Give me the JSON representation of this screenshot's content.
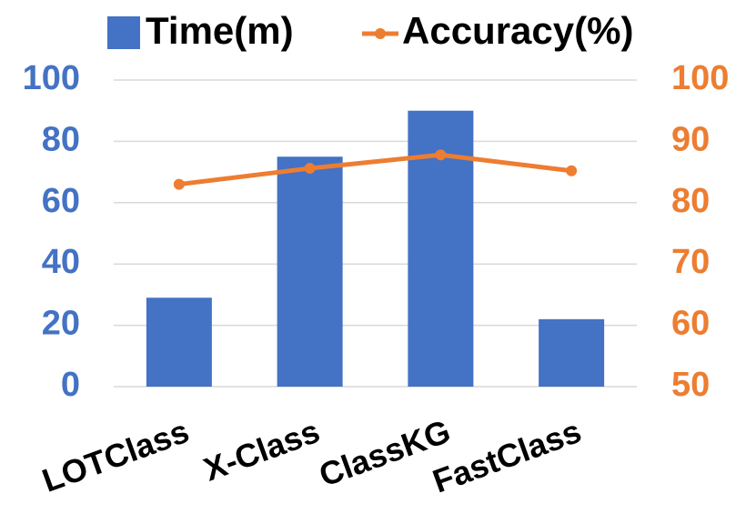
{
  "chart_data": {
    "type": "combo",
    "categories": [
      "LOTClass",
      "X-Class",
      "ClassKG",
      "FastClass"
    ],
    "series": [
      {
        "name": "Time(m)",
        "type": "bar",
        "color": "#4472c4",
        "values": [
          29,
          75,
          90,
          22
        ]
      },
      {
        "name": "Accuracy(%)",
        "type": "line",
        "axis": "y2",
        "color": "#ed7d31",
        "values": [
          83,
          85.6,
          87.8,
          85.2
        ]
      }
    ],
    "ylim": [
      0,
      100
    ],
    "yticks": [
      0,
      20,
      40,
      60,
      80,
      100
    ],
    "y2lim": [
      50,
      100
    ],
    "y2ticks": [
      50,
      60,
      70,
      80,
      90,
      100
    ],
    "grid": true,
    "legend": "top"
  }
}
